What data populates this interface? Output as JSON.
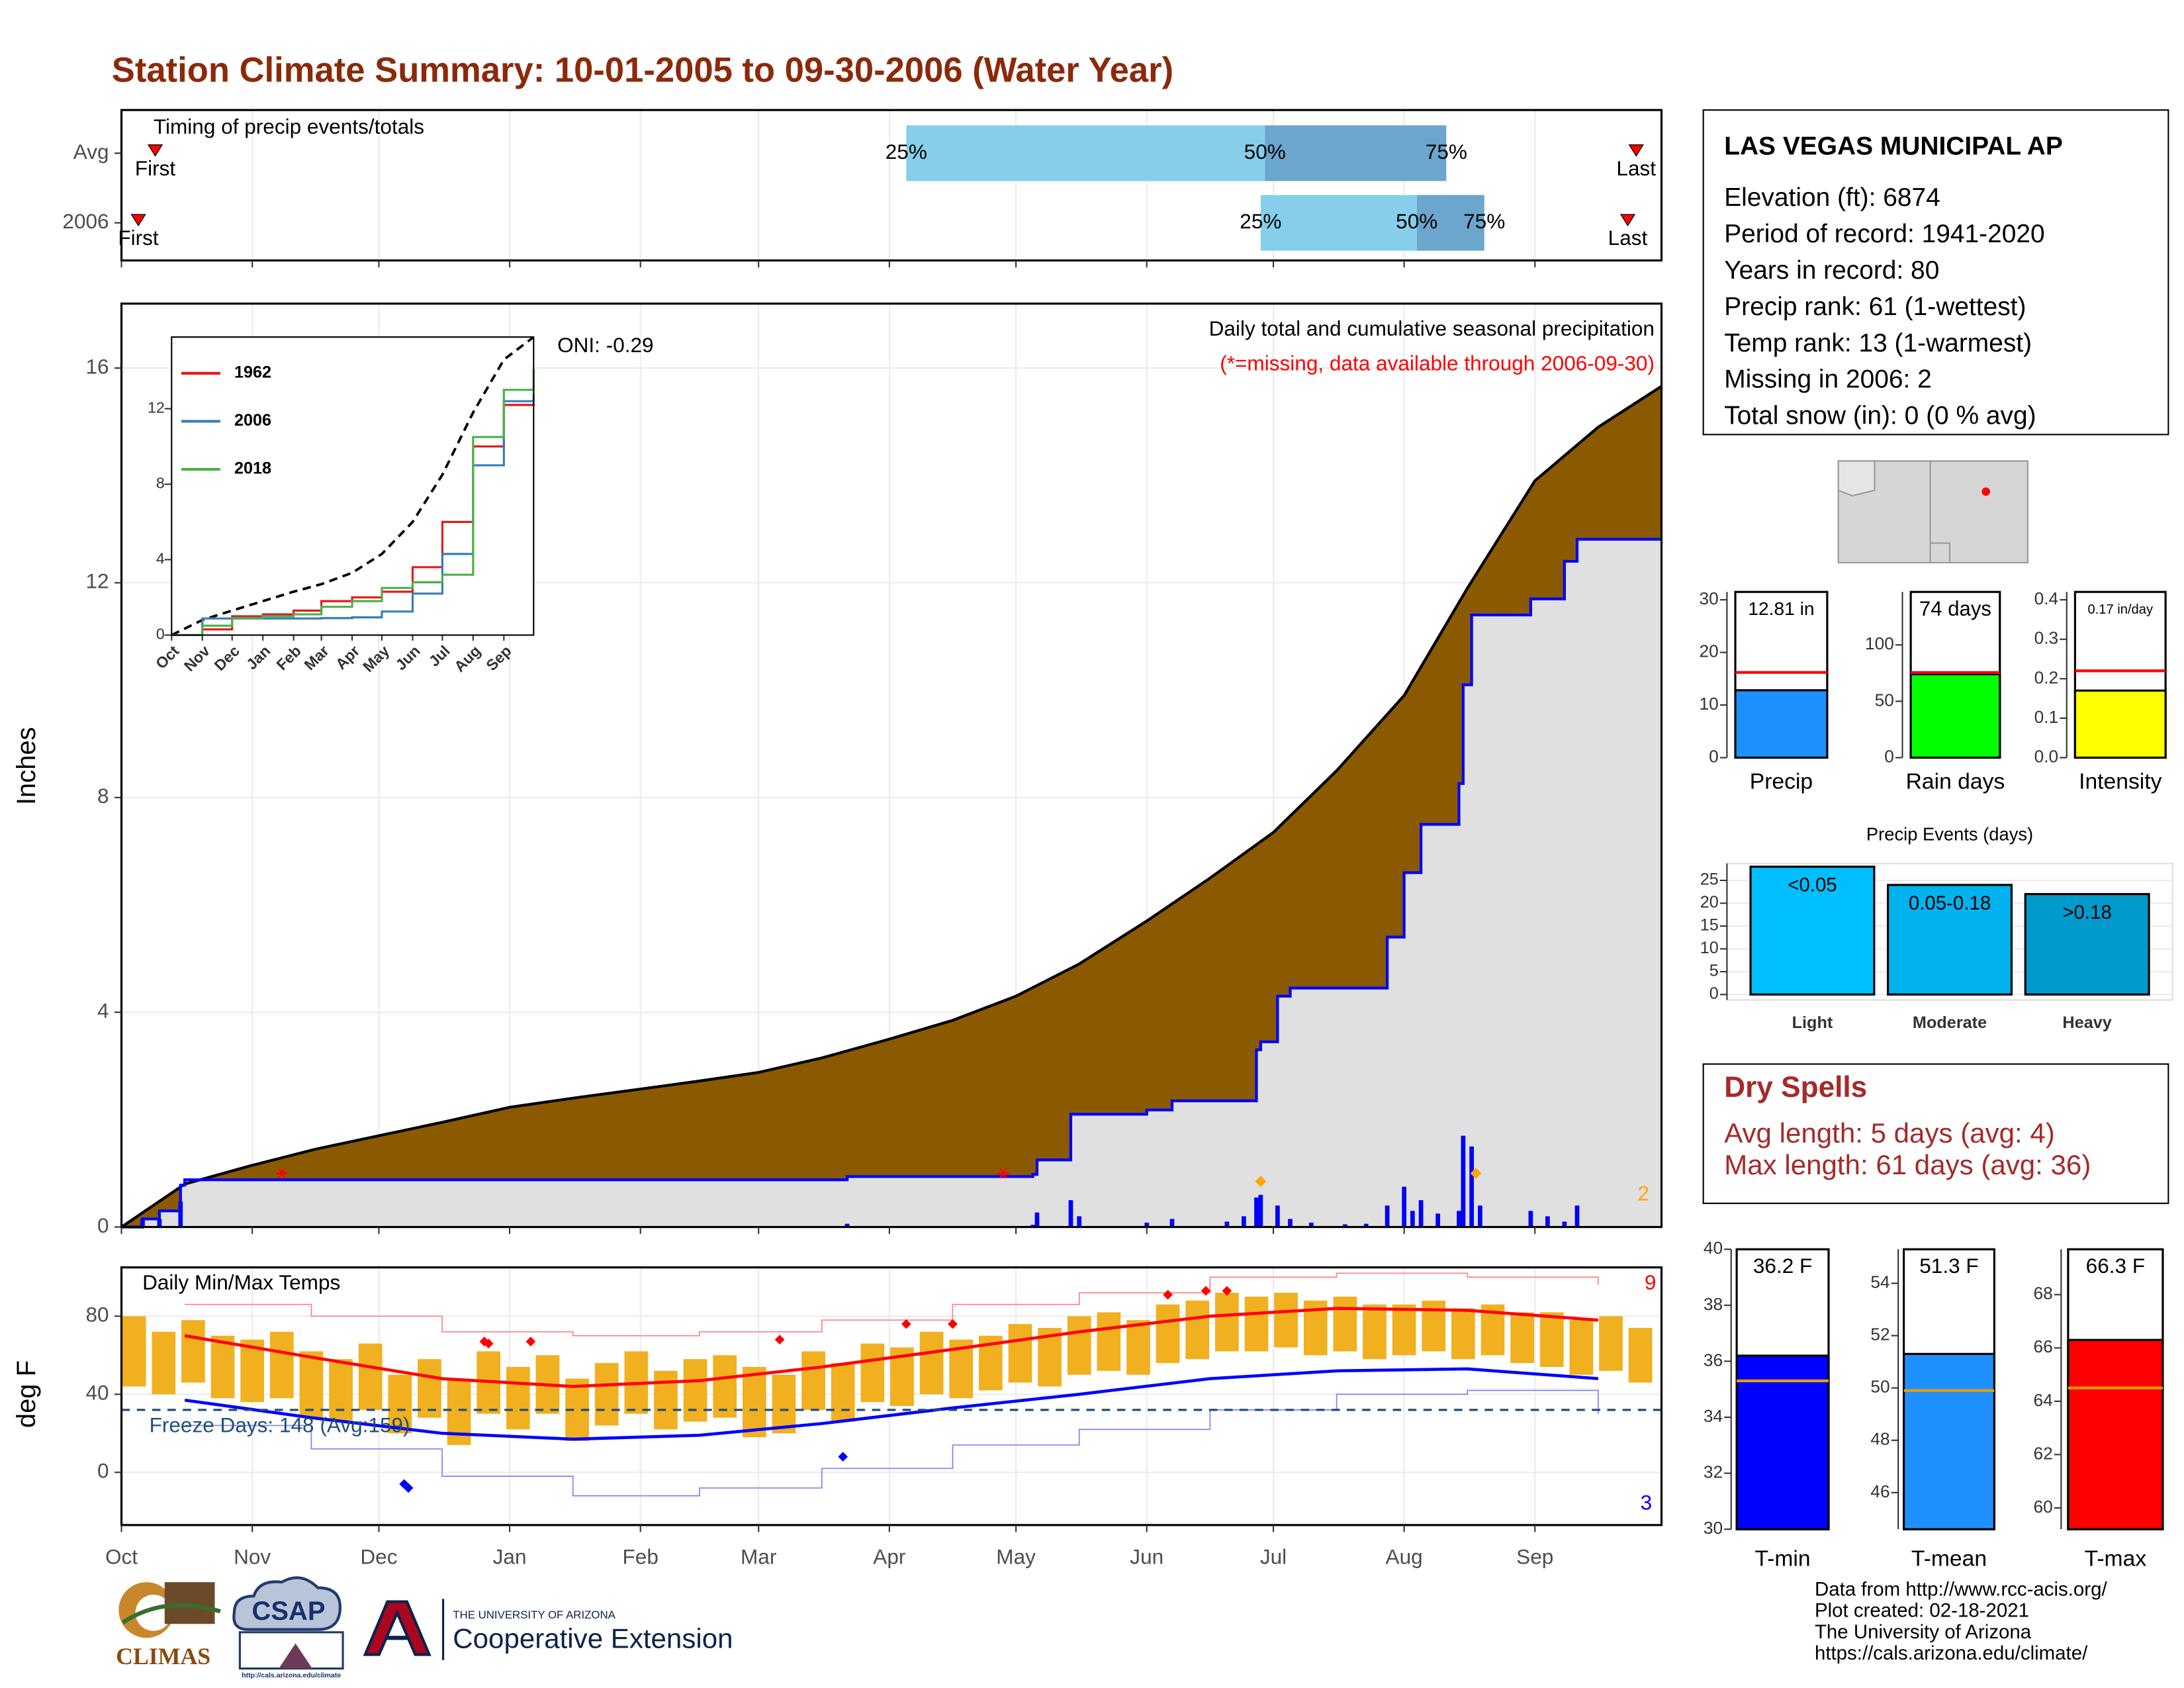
{
  "title": "Station Climate Summary: 10-01-2005 to 09-30-2006 (Water Year)",
  "station": {
    "name": "LAS VEGAS MUNICIPAL AP",
    "lines": [
      "Elevation (ft): 6874",
      "Period of record: 1941-2020",
      "Years in record: 80",
      "Precip rank: 61 (1-wettest)",
      "Temp rank: 13 (1-warmest)",
      "Missing in 2006: 2",
      "Total snow (in): 0 (0 % avg)"
    ]
  },
  "dry_spells": {
    "title": "Dry Spells",
    "lines": [
      "Avg length: 5 days (avg: 4)",
      "Max length: 61 days (avg: 36)"
    ]
  },
  "footer": {
    "lines": [
      "Data from http://www.rcc-acis.org/",
      "Plot created: 02-18-2021",
      "The University of Arizona",
      "https://cals.arizona.edu/climate/"
    ]
  },
  "logos": {
    "climas": "CLIMAS",
    "csap": "CSAP",
    "csap_url": "http://cals.arizona.edu/climate",
    "university": "THE UNIVERSITY OF ARIZONA",
    "extension": "Cooperative Extension"
  },
  "chart_data": [
    {
      "type": "timing",
      "label": "Timing of precip events/totals",
      "categories": [
        "Avg",
        "2006"
      ],
      "xlim": [
        0,
        365
      ],
      "colors": [
        "#87ceeb",
        "#6ca6cd"
      ],
      "marker_color": "#ff0000",
      "rows": [
        {
          "first": 8,
          "first_label": "First",
          "last": 359,
          "last_label": "Last",
          "quantiles": [
            {
              "value": 186,
              "label": "25%"
            },
            {
              "value": 271,
              "label": "50%"
            },
            {
              "value": 314,
              "label": "75%"
            }
          ]
        },
        {
          "first": 4,
          "first_label": "First",
          "last": 357,
          "last_label": "Last",
          "quantiles": [
            {
              "value": 270,
              "label": "25%"
            },
            {
              "value": 307,
              "label": "50%"
            },
            {
              "value": 323,
              "label": "75%"
            }
          ]
        }
      ]
    },
    {
      "type": "area",
      "title": "Daily total and cumulative seasonal precipitation",
      "note": "(*=missing, data available through 2006-09-30)",
      "oni": "ONI: -0.29",
      "ylabel": "Inches",
      "xlim": [
        0,
        365
      ],
      "ylim": [
        0,
        17.2
      ],
      "yticks": [
        0,
        4,
        8,
        12,
        16
      ],
      "grid": true,
      "avg": {
        "color": "#8b5a00",
        "line_color": "#000000",
        "x": [
          0,
          15,
          31,
          46,
          61,
          76,
          92,
          107,
          123,
          137,
          151,
          166,
          182,
          197,
          212,
          227,
          243,
          258,
          273,
          288,
          304,
          319,
          335,
          350,
          365
        ],
        "values": [
          0,
          0.8,
          1.15,
          1.45,
          1.7,
          1.95,
          2.23,
          2.4,
          2.57,
          2.72,
          2.88,
          3.15,
          3.5,
          3.85,
          4.3,
          4.9,
          5.7,
          6.5,
          7.35,
          8.5,
          9.9,
          11.9,
          13.9,
          14.9,
          15.66
        ]
      },
      "current": {
        "color": "#0000ff",
        "fill": "#e0e0e0",
        "x": [
          0,
          5,
          9,
          14,
          15,
          172,
          216,
          217,
          225,
          243,
          249,
          269,
          270,
          274,
          277,
          300,
          304,
          308,
          317,
          318,
          320,
          334,
          342,
          345,
          365
        ],
        "values": [
          0,
          0.15,
          0.3,
          0.78,
          0.88,
          0.94,
          0.98,
          1.25,
          2.1,
          2.18,
          2.35,
          3.3,
          3.45,
          4.3,
          4.45,
          5.4,
          6.6,
          7.5,
          8.26,
          10.1,
          11.4,
          11.7,
          12.4,
          12.81,
          12.81
        ]
      },
      "daily": {
        "color": "#0000ff",
        "x": [
          5,
          9,
          14,
          172,
          216,
          217,
          225,
          227,
          243,
          249,
          262,
          266,
          269,
          270,
          274,
          277,
          282,
          290,
          295,
          300,
          304,
          306,
          308,
          312,
          317,
          318,
          320,
          322,
          334,
          338,
          342,
          345
        ],
        "values": [
          0.15,
          0.15,
          0.48,
          0.06,
          0.04,
          0.27,
          0.5,
          0.2,
          0.08,
          0.15,
          0.1,
          0.2,
          0.55,
          0.6,
          0.4,
          0.15,
          0.08,
          0.05,
          0.06,
          0.4,
          0.75,
          0.3,
          0.5,
          0.25,
          0.3,
          1.7,
          1.5,
          0.4,
          0.3,
          0.2,
          0.1,
          0.4
        ]
      },
      "missing": {
        "color": "#ff0000",
        "x": [
          38,
          209
        ],
        "values": [
          1,
          1
        ]
      },
      "extremes": {
        "color": "#ffa500",
        "x": [
          270,
          321
        ],
        "values": [
          0.85,
          1.0
        ],
        "count": 2
      }
    },
    {
      "type": "line",
      "xlim": [
        0,
        365
      ],
      "ylim": [
        0,
        15.8
      ],
      "yticks": [
        0,
        4,
        8,
        12
      ],
      "xticks": [
        {
          "value": 0,
          "label": "Oct"
        },
        {
          "value": 31,
          "label": "Nov"
        },
        {
          "value": 61,
          "label": "Dec"
        },
        {
          "value": 92,
          "label": "Jan"
        },
        {
          "value": 123,
          "label": "Feb"
        },
        {
          "value": 151,
          "label": "Mar"
        },
        {
          "value": 182,
          "label": "Apr"
        },
        {
          "value": 212,
          "label": "May"
        },
        {
          "value": 243,
          "label": "Jun"
        },
        {
          "value": 273,
          "label": "Jul"
        },
        {
          "value": 304,
          "label": "Aug"
        },
        {
          "value": 335,
          "label": "Sep"
        }
      ],
      "x": [
        0,
        31,
        61,
        92,
        123,
        151,
        182,
        212,
        243,
        273,
        304,
        335,
        365
      ],
      "average": {
        "color": "#000000",
        "values": [
          0,
          0.8,
          1.3,
          1.8,
          2.3,
          2.7,
          3.3,
          4.3,
          6.0,
          8.5,
          11.8,
          14.6,
          15.8
        ]
      },
      "series": [
        {
          "name": "1962",
          "color": "#e41a1c",
          "values": [
            0,
            0.3,
            1.0,
            1.1,
            1.3,
            1.8,
            2.0,
            2.3,
            3.6,
            6.0,
            10.0,
            12.2,
            12.3
          ]
        },
        {
          "name": "2006",
          "color": "#377eb8",
          "values": [
            0,
            0.88,
            0.88,
            0.88,
            0.88,
            0.9,
            0.94,
            1.25,
            2.2,
            4.3,
            9.0,
            12.4,
            12.81
          ]
        },
        {
          "name": "2018",
          "color": "#4daf4a",
          "values": [
            0,
            0.5,
            0.9,
            1.0,
            1.1,
            1.5,
            1.8,
            2.5,
            2.8,
            3.2,
            10.5,
            13.0,
            14.1
          ]
        }
      ]
    },
    {
      "type": "range_bar",
      "label": "Daily Min/Max Temps",
      "ylabel": "deg F",
      "xlim": [
        0,
        365
      ],
      "ylim": [
        -27,
        105
      ],
      "yticks": [
        0,
        40,
        80
      ],
      "grid": true,
      "xticks": [
        {
          "value": 0,
          "label": "Oct"
        },
        {
          "value": 31,
          "label": "Nov"
        },
        {
          "value": 61,
          "label": "Dec"
        },
        {
          "value": 92,
          "label": "Jan"
        },
        {
          "value": 123,
          "label": "Feb"
        },
        {
          "value": 151,
          "label": "Mar"
        },
        {
          "value": 182,
          "label": "Apr"
        },
        {
          "value": 212,
          "label": "May"
        },
        {
          "value": 243,
          "label": "Jun"
        },
        {
          "value": 273,
          "label": "Jul"
        },
        {
          "value": 304,
          "label": "Aug"
        },
        {
          "value": 335,
          "label": "Sep"
        }
      ],
      "x": [
        3,
        10,
        17,
        24,
        31,
        38,
        45,
        52,
        59,
        66,
        73,
        80,
        87,
        94,
        101,
        108,
        115,
        122,
        129,
        136,
        143,
        150,
        157,
        164,
        171,
        178,
        185,
        192,
        199,
        206,
        213,
        220,
        227,
        234,
        241,
        248,
        255,
        262,
        269,
        276,
        283,
        290,
        297,
        304,
        311,
        318,
        325,
        332,
        339,
        346,
        353,
        360
      ],
      "tmax": [
        80,
        72,
        78,
        70,
        68,
        72,
        62,
        58,
        66,
        50,
        58,
        48,
        62,
        54,
        60,
        48,
        56,
        62,
        52,
        58,
        60,
        54,
        50,
        62,
        56,
        66,
        64,
        72,
        68,
        70,
        76,
        74,
        80,
        82,
        78,
        86,
        88,
        92,
        90,
        92,
        88,
        90,
        86,
        86,
        88,
        84,
        86,
        82,
        82,
        78,
        80,
        74
      ],
      "tmin": [
        44,
        40,
        46,
        38,
        36,
        38,
        28,
        26,
        32,
        20,
        28,
        14,
        30,
        22,
        30,
        16,
        24,
        30,
        22,
        26,
        28,
        18,
        20,
        32,
        26,
        36,
        34,
        40,
        38,
        42,
        46,
        44,
        50,
        52,
        50,
        56,
        58,
        62,
        62,
        64,
        60,
        62,
        58,
        60,
        62,
        58,
        60,
        56,
        54,
        50,
        52,
        46
      ],
      "bar_color": "#f0b020",
      "lines_x": [
        15,
        45,
        76,
        107,
        137,
        166,
        197,
        227,
        258,
        288,
        319,
        350
      ],
      "avg_max": {
        "color": "#ff0000",
        "values": [
          70,
          59,
          48,
          44,
          47,
          54,
          63,
          72,
          80,
          84,
          83,
          78
        ]
      },
      "avg_min": {
        "color": "#0000ff",
        "values": [
          37,
          28,
          20,
          17,
          19,
          25,
          33,
          40,
          48,
          52,
          53,
          48
        ]
      },
      "record_max": {
        "color": "#ff8080",
        "values": [
          86,
          80,
          72,
          70,
          72,
          78,
          86,
          92,
          100,
          102,
          100,
          96
        ]
      },
      "record_min": {
        "color": "#8080ff",
        "values": [
          24,
          12,
          -2,
          -12,
          -8,
          2,
          14,
          22,
          32,
          40,
          42,
          30
        ]
      },
      "freeze_line": 32,
      "freeze_color": "#1f4e79",
      "freeze_label": "Freeze Days: 148 (Avg:159)",
      "record_highs": {
        "color": "#ff0000",
        "x": [
          86,
          87,
          97,
          156,
          186,
          197,
          248,
          257,
          262
        ],
        "values": [
          67,
          66,
          67,
          68,
          76,
          76,
          91,
          93,
          93
        ],
        "count": 9
      },
      "record_lows": {
        "color": "#0000ff",
        "x": [
          67,
          68,
          171
        ],
        "values": [
          -6,
          -8,
          8
        ],
        "count": 3
      }
    },
    {
      "type": "bar",
      "categories": [
        "Precip"
      ],
      "values": [
        12.81
      ],
      "value_labels": [
        "12.81 in"
      ],
      "average": 16.2,
      "average_color": "#ff0000",
      "color": "#1e90ff",
      "ylim": [
        0,
        31.5
      ],
      "yticks": [
        0,
        10,
        20,
        30
      ]
    },
    {
      "type": "bar",
      "categories": [
        "Rain days"
      ],
      "values": [
        74
      ],
      "value_labels": [
        "74 days"
      ],
      "average": 75.5,
      "average_color": "#ff0000",
      "color": "#00ff00",
      "ylim": [
        0,
        147
      ],
      "yticks": [
        0,
        50,
        100
      ]
    },
    {
      "type": "bar",
      "categories": [
        "Intensity"
      ],
      "values": [
        0.17
      ],
      "value_labels": [
        "0.17 in/day"
      ],
      "average": 0.22,
      "average_color": "#ff0000",
      "color": "#ffff00",
      "ylim": [
        0,
        0.42
      ],
      "yticks": [
        {
          "value": 0,
          "label": "0.0"
        },
        0.1,
        0.2,
        0.3,
        0.4
      ]
    },
    {
      "type": "bar",
      "title": "Precip Events (days)",
      "categories": [
        "Light",
        "Moderate",
        "Heavy"
      ],
      "values": [
        28,
        24,
        22
      ],
      "bin_labels": [
        "<0.05",
        "0.05-0.18",
        ">0.18"
      ],
      "colors": [
        "#00bfff",
        "#00b2ee",
        "#009acd"
      ],
      "ylim": [
        -1.2,
        28.7
      ],
      "yticks": [
        0,
        5,
        10,
        15,
        20,
        25
      ],
      "grid": true
    },
    {
      "type": "bar",
      "categories": [
        "T-min"
      ],
      "values": [
        36.2
      ],
      "value_labels": [
        "36.2 F"
      ],
      "average": 35.3,
      "average_color": "#e69f00",
      "color": "#0000ff",
      "ylim": [
        30,
        40
      ],
      "yticks": [
        30,
        32,
        34,
        36,
        38,
        40
      ]
    },
    {
      "type": "bar",
      "categories": [
        "T-mean"
      ],
      "values": [
        51.3
      ],
      "value_labels": [
        "51.3 F"
      ],
      "average": 49.9,
      "average_color": "#e69f00",
      "color": "#1e90ff",
      "ylim": [
        44.6,
        55.3
      ],
      "yticks": [
        46,
        48,
        50,
        52,
        54
      ]
    },
    {
      "type": "bar",
      "categories": [
        "T-max"
      ],
      "values": [
        66.3
      ],
      "value_labels": [
        "66.3 F"
      ],
      "average": 64.5,
      "average_color": "#e69f00",
      "color": "#ff0000",
      "ylim": [
        59.2,
        69.7
      ],
      "yticks": [
        60,
        62,
        64,
        66,
        68
      ]
    }
  ]
}
